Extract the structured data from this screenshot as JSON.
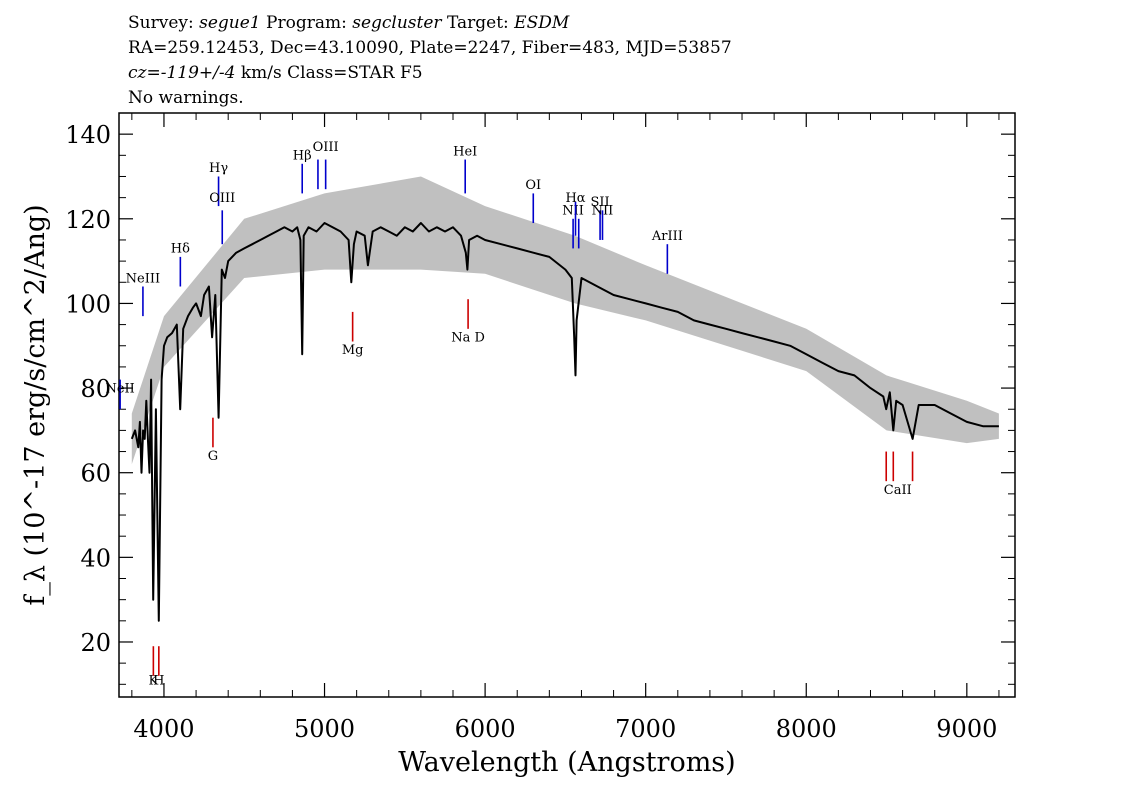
{
  "header": {
    "survey_label": "Survey:",
    "survey": "segue1",
    "program_label": "Program:",
    "program": "segcluster",
    "target_label": "Target:",
    "target": "ESDM",
    "line2": "RA=259.12453, Dec=43.10090, Plate=2247, Fiber=483, MJD=53857",
    "cz_label": "cz=",
    "cz_value": "-119+/-4",
    "cz_rest": " km/s Class=STAR F5",
    "line4": "No warnings."
  },
  "colors": {
    "emission": "#0000cc",
    "absorption": "#cc0000",
    "spectrum": "#000000",
    "error": "#c0c0c0"
  },
  "chart_data": {
    "type": "line",
    "title": "",
    "xlabel": "Wavelength (Angstroms)",
    "ylabel": "f_λ (10^-17 erg/s/cm^2/Ang)",
    "xlim": [
      3720,
      9300
    ],
    "ylim": [
      7,
      145
    ],
    "xticks": [
      4000,
      5000,
      6000,
      7000,
      8000,
      9000
    ],
    "yticks": [
      20,
      40,
      60,
      80,
      100,
      120,
      140
    ],
    "series": [
      {
        "style": "spectrum",
        "x": [
          3800,
          3820,
          3840,
          3850,
          3860,
          3870,
          3880,
          3890,
          3900,
          3910,
          3920,
          3933,
          3950,
          3968,
          3985,
          4000,
          4020,
          4050,
          4080,
          4101,
          4120,
          4150,
          4180,
          4200,
          4230,
          4250,
          4280,
          4300,
          4320,
          4340,
          4360,
          4380,
          4400,
          4450,
          4500,
          4550,
          4600,
          4650,
          4700,
          4750,
          4800,
          4830,
          4850,
          4861,
          4870,
          4900,
          4950,
          5000,
          5050,
          5100,
          5150,
          5167,
          5183,
          5200,
          5250,
          5270,
          5300,
          5350,
          5400,
          5450,
          5500,
          5550,
          5600,
          5650,
          5700,
          5750,
          5800,
          5850,
          5880,
          5890,
          5900,
          5950,
          6000,
          6100,
          6200,
          6300,
          6400,
          6500,
          6540,
          6555,
          6563,
          6570,
          6600,
          6650,
          6700,
          6800,
          6900,
          7000,
          7100,
          7200,
          7300,
          7400,
          7500,
          7600,
          7700,
          7800,
          7900,
          8000,
          8100,
          8200,
          8300,
          8400,
          8480,
          8498,
          8520,
          8542,
          8560,
          8600,
          8662,
          8700,
          8800,
          8900,
          9000,
          9100,
          9200
        ],
        "values": [
          68,
          70,
          66,
          72,
          60,
          70,
          68,
          77,
          68,
          60,
          82,
          30,
          75,
          25,
          82,
          90,
          92,
          93,
          95,
          75,
          94,
          97,
          99,
          100,
          97,
          102,
          104,
          92,
          102,
          73,
          108,
          106,
          110,
          112,
          113,
          114,
          115,
          116,
          117,
          118,
          117,
          118,
          115,
          88,
          116,
          118,
          117,
          119,
          118,
          117,
          115,
          105,
          114,
          117,
          116,
          109,
          117,
          118,
          117,
          116,
          118,
          117,
          119,
          117,
          118,
          117,
          118,
          116,
          112,
          108,
          115,
          116,
          115,
          114,
          113,
          112,
          111,
          108,
          106,
          92,
          83,
          96,
          106,
          105,
          104,
          102,
          101,
          100,
          99,
          98,
          96,
          95,
          94,
          93,
          92,
          91,
          90,
          88,
          86,
          84,
          83,
          80,
          78,
          75,
          79,
          70,
          77,
          76,
          68,
          76,
          76,
          74,
          72,
          71,
          71
        ]
      },
      {
        "style": "error",
        "x": [
          3800,
          4000,
          4500,
          5000,
          5600,
          6000,
          6560,
          7000,
          8000,
          8500,
          9000,
          9200
        ],
        "upper": [
          74,
          97,
          120,
          126,
          130,
          123,
          116,
          109,
          94,
          83,
          77,
          74
        ],
        "lower": [
          62,
          85,
          106,
          108,
          108,
          107,
          100,
          96,
          84,
          70,
          67,
          68
        ]
      }
    ],
    "annotations": [
      {
        "kind": "emission",
        "label": "NeII",
        "wavelength": 3727,
        "line_y": [
          75,
          82
        ],
        "label_y": 79
      },
      {
        "kind": "emission",
        "label": "NeIII",
        "wavelength": 3869,
        "line_y": [
          97,
          104
        ],
        "label_y": 105
      },
      {
        "kind": "emission",
        "label": "Hδ",
        "wavelength": 4102,
        "line_y": [
          104,
          111
        ],
        "label_y": 112
      },
      {
        "kind": "emission",
        "label": "Hγ",
        "wavelength": 4340,
        "line_y": [
          123,
          130
        ],
        "label_y": 131
      },
      {
        "kind": "emission",
        "label": "OIII",
        "wavelength": 4363,
        "line_y": [
          114,
          122
        ],
        "label_y": 124
      },
      {
        "kind": "emission",
        "label": "Hβ",
        "wavelength": 4861,
        "line_y": [
          126,
          133
        ],
        "label_y": 134
      },
      {
        "kind": "emission",
        "label": "OIII",
        "wavelength": 4959,
        "line_y": [
          127,
          134
        ],
        "label_y": null
      },
      {
        "kind": "emission",
        "label": "OIII",
        "wavelength": 5007,
        "line_y": [
          127,
          134
        ],
        "label_y": 136
      },
      {
        "kind": "emission",
        "label": "HeI",
        "wavelength": 5876,
        "line_y": [
          126,
          134
        ],
        "label_y": 135
      },
      {
        "kind": "emission",
        "label": "OI",
        "wavelength": 6300,
        "line_y": [
          119,
          126
        ],
        "label_y": 127
      },
      {
        "kind": "emission",
        "label": "NII",
        "wavelength": 6548,
        "line_y": [
          113,
          120
        ],
        "label_y": 121
      },
      {
        "kind": "emission",
        "label": "Hα",
        "wavelength": 6563,
        "line_y": [
          116,
          124
        ],
        "label_y": 124
      },
      {
        "kind": "emission",
        "label": "NII",
        "wavelength": 6583,
        "line_y": [
          113,
          120
        ],
        "label_y": null
      },
      {
        "kind": "emission",
        "label": "SII",
        "wavelength": 6716,
        "line_y": [
          115,
          122
        ],
        "label_y": 123
      },
      {
        "kind": "emission",
        "label": "SII",
        "wavelength": 6731,
        "line_y": [
          115,
          122
        ],
        "label_y": null
      },
      {
        "kind": "emission",
        "label": "NII",
        "wavelength": 6731,
        "line_y": null,
        "label_y": 121
      },
      {
        "kind": "emission",
        "label": "ArIII",
        "wavelength": 7135,
        "line_y": [
          107,
          114
        ],
        "label_y": 115
      },
      {
        "kind": "absorption",
        "label": "K",
        "wavelength": 3934,
        "line_y": [
          12,
          19
        ],
        "label_y": 10
      },
      {
        "kind": "absorption",
        "label": "H",
        "wavelength": 3968,
        "line_y": [
          12,
          19
        ],
        "label_y": 10
      },
      {
        "kind": "absorption",
        "label": "G",
        "wavelength": 4305,
        "line_y": [
          66,
          73
        ],
        "label_y": 63
      },
      {
        "kind": "absorption",
        "label": "Mg",
        "wavelength": 5175,
        "line_y": [
          91,
          98
        ],
        "label_y": 88
      },
      {
        "kind": "absorption",
        "label": "Na D",
        "wavelength": 5894,
        "line_y": [
          94,
          101
        ],
        "label_y": 91
      },
      {
        "kind": "absorption",
        "label": "",
        "wavelength": 8498,
        "line_y": [
          58,
          65
        ],
        "label_y": null
      },
      {
        "kind": "absorption",
        "label": "",
        "wavelength": 8542,
        "line_y": [
          58,
          65
        ],
        "label_y": null
      },
      {
        "kind": "absorption",
        "label": "",
        "wavelength": 8662,
        "line_y": [
          58,
          65
        ],
        "label_y": null
      },
      {
        "kind": "absorption",
        "label": "CaII",
        "wavelength": 8570,
        "line_y": null,
        "label_y": 55
      }
    ]
  }
}
